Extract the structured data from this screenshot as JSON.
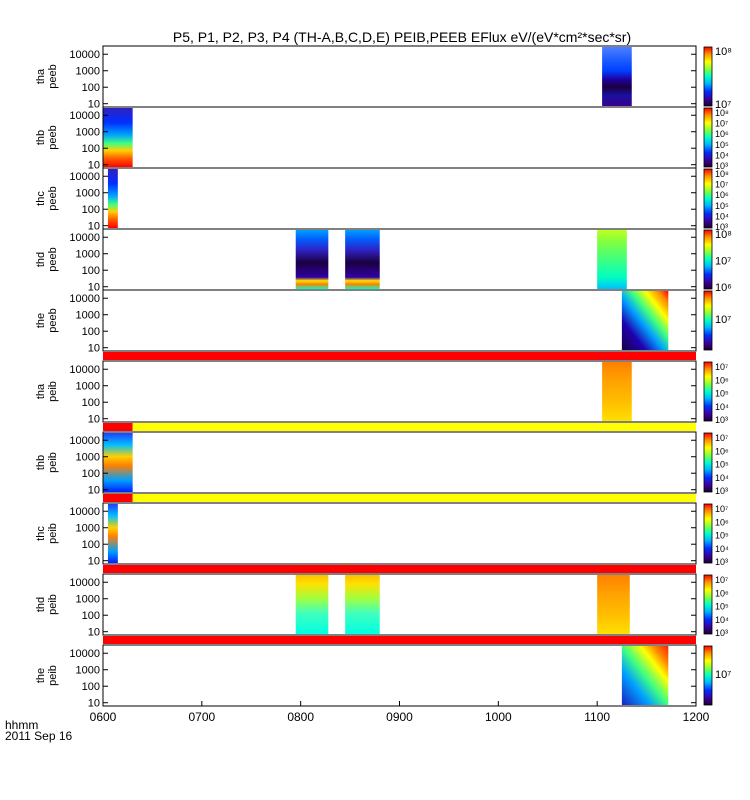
{
  "chart_data": {
    "type": "heatmap",
    "title": "P5, P1, P2, P3, P4 (TH-A,B,C,D,E) PEIB,PEEB EFlux eV/(eV*cm²*sec*sr)",
    "footer": {
      "unit": "hhmm",
      "date": "2011 Sep 16"
    },
    "x_tick_labels": [
      "0600",
      "0700",
      "0800",
      "0900",
      "1000",
      "1100",
      "1200"
    ],
    "x_range_hours": [
      6,
      12
    ],
    "y_tick_labels": [
      "10",
      "100",
      "1000",
      "10000"
    ],
    "y_range_log10": [
      0.8,
      4.5
    ],
    "colormap": [
      "#1a0030",
      "#3c00a0",
      "#0030ff",
      "#00b4ff",
      "#00ffc8",
      "#80ff40",
      "#ffff00",
      "#ff9000",
      "#ff0000"
    ],
    "panels": [
      {
        "label": [
          "tha",
          "peeb"
        ],
        "colorbar_ticks": [
          "10⁷",
          "10⁸"
        ],
        "blocks": [
          {
            "t0": 11.05,
            "t1": 11.35,
            "style": "bimodal"
          }
        ],
        "flag_bar": null
      },
      {
        "label": [
          "thb",
          "peeb"
        ],
        "colorbar_ticks": [
          "10³",
          "10⁴",
          "10⁵",
          "10⁶",
          "10⁷",
          "10⁸"
        ],
        "blocks": [
          {
            "t0": 6.0,
            "t1": 6.3,
            "style": "lowhot"
          }
        ],
        "flag_bar": null
      },
      {
        "label": [
          "thc",
          "peeb"
        ],
        "colorbar_ticks": [
          "10³",
          "10⁴",
          "10⁵",
          "10⁶",
          "10⁷",
          "10⁸"
        ],
        "blocks": [
          {
            "t0": 6.05,
            "t1": 6.15,
            "style": "lowhot"
          }
        ],
        "flag_bar": null
      },
      {
        "label": [
          "thd",
          "peeb"
        ],
        "colorbar_ticks": [
          "10⁶",
          "10⁷",
          "10⁸"
        ],
        "blocks": [
          {
            "t0": 7.95,
            "t1": 8.28,
            "style": "cool"
          },
          {
            "t0": 8.45,
            "t1": 8.8,
            "style": "cool"
          },
          {
            "t0": 11.0,
            "t1": 11.3,
            "style": "greenish"
          }
        ],
        "flag_bar": null
      },
      {
        "label": [
          "the",
          "peeb"
        ],
        "colorbar_ticks": [
          "10⁷"
        ],
        "blocks": [
          {
            "t0": 11.25,
            "t1": 11.72,
            "style": "swirl"
          }
        ],
        "flag_bar": null
      },
      {
        "label": [
          "tha",
          "peib"
        ],
        "colorbar_ticks": [
          "10³",
          "10⁴",
          "10⁵",
          "10⁶",
          "10⁷"
        ],
        "blocks": [
          {
            "t0": 11.05,
            "t1": 11.35,
            "style": "orange"
          }
        ],
        "flag_bar": {
          "segments": [
            {
              "t0": 6.0,
              "t1": 12.0,
              "color": "#ff0000"
            }
          ]
        }
      },
      {
        "label": [
          "thb",
          "peib"
        ],
        "colorbar_ticks": [
          "10³",
          "10⁴",
          "10⁵",
          "10⁶",
          "10⁷"
        ],
        "blocks": [
          {
            "t0": 6.0,
            "t1": 6.3,
            "style": "lowhot2"
          }
        ],
        "flag_bar": {
          "segments": [
            {
              "t0": 6.0,
              "t1": 6.3,
              "color": "#ff0000"
            },
            {
              "t0": 6.3,
              "t1": 12.0,
              "color": "#ffff00"
            }
          ]
        }
      },
      {
        "label": [
          "thc",
          "peib"
        ],
        "colorbar_ticks": [
          "10³",
          "10⁴",
          "10⁵",
          "10⁶",
          "10⁷"
        ],
        "blocks": [
          {
            "t0": 6.05,
            "t1": 6.15,
            "style": "lowhot2"
          }
        ],
        "flag_bar": {
          "segments": [
            {
              "t0": 6.0,
              "t1": 6.3,
              "color": "#ff0000"
            },
            {
              "t0": 6.3,
              "t1": 12.0,
              "color": "#ffff00"
            }
          ]
        }
      },
      {
        "label": [
          "thd",
          "peib"
        ],
        "colorbar_ticks": [
          "10³",
          "10⁴",
          "10⁵",
          "10⁶",
          "10⁷"
        ],
        "blocks": [
          {
            "t0": 7.95,
            "t1": 8.28,
            "style": "yellowcyan"
          },
          {
            "t0": 8.45,
            "t1": 8.8,
            "style": "yellowcyan"
          },
          {
            "t0": 11.0,
            "t1": 11.33,
            "style": "orange"
          }
        ],
        "flag_bar": {
          "segments": [
            {
              "t0": 6.0,
              "t1": 12.0,
              "color": "#ff0000"
            }
          ]
        }
      },
      {
        "label": [
          "the",
          "peib"
        ],
        "colorbar_ticks": [
          "10⁷"
        ],
        "blocks": [
          {
            "t0": 11.25,
            "t1": 11.72,
            "style": "swirl2"
          }
        ],
        "flag_bar": {
          "segments": [
            {
              "t0": 6.0,
              "t1": 12.0,
              "color": "#ff0000"
            }
          ]
        }
      }
    ]
  }
}
